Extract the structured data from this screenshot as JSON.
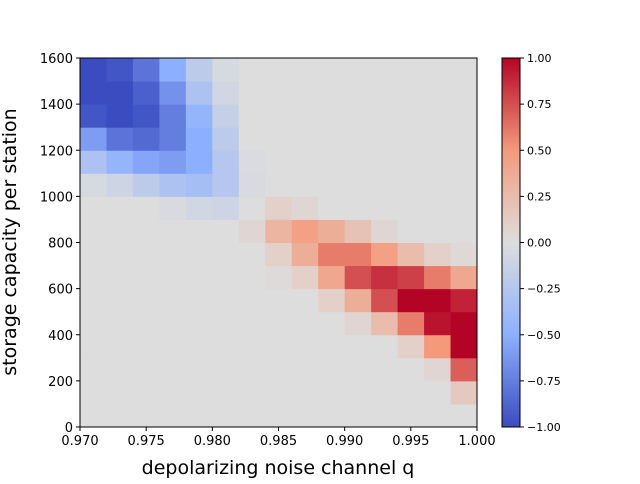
{
  "chart_data": {
    "type": "heatmap",
    "x_label": "depolarizing noise channel q",
    "y_label": "storage capacity per station",
    "colormap": "coolwarm",
    "x": [
      0.971,
      0.973,
      0.975,
      0.977,
      0.979,
      0.981,
      0.983,
      0.985,
      0.987,
      0.989,
      0.991,
      0.993,
      0.995,
      0.997,
      0.999
    ],
    "y": [
      50,
      150,
      250,
      350,
      450,
      550,
      650,
      750,
      850,
      950,
      1050,
      1150,
      1250,
      1350,
      1450,
      1550
    ],
    "z": [
      [
        0,
        0,
        0,
        0,
        0,
        0,
        0,
        0,
        0,
        0,
        0,
        0,
        0,
        0,
        0
      ],
      [
        0,
        0,
        0,
        0,
        0,
        0,
        0,
        0,
        0,
        0,
        0,
        0,
        0,
        0,
        0.15
      ],
      [
        0,
        0,
        0,
        0,
        0,
        0,
        0,
        0,
        0,
        0,
        0,
        0,
        0,
        0.05,
        0.7
      ],
      [
        0,
        0,
        0,
        0,
        0,
        0,
        0,
        0,
        0,
        0,
        0,
        0,
        0.1,
        0.5,
        1
      ],
      [
        0,
        0,
        0,
        0,
        0,
        0,
        0,
        0,
        0,
        0,
        0.05,
        0.25,
        0.6,
        0.95,
        1
      ],
      [
        0,
        0,
        0,
        0,
        0,
        0,
        0,
        0,
        0,
        0.1,
        0.35,
        0.75,
        1,
        1,
        0.9
      ],
      [
        0,
        0,
        0,
        0,
        0,
        0,
        0,
        0.02,
        0.1,
        0.4,
        0.75,
        0.85,
        0.8,
        0.6,
        0.4
      ],
      [
        0,
        0,
        0,
        0,
        0,
        0,
        0,
        0.1,
        0.35,
        0.6,
        0.6,
        0.45,
        0.25,
        0.1,
        0.03
      ],
      [
        0,
        0,
        0,
        0,
        0,
        0,
        0.05,
        0.3,
        0.45,
        0.35,
        0.2,
        0.05,
        0,
        0,
        0
      ],
      [
        0,
        0,
        0,
        -0.03,
        -0.08,
        -0.1,
        0,
        0.1,
        0.05,
        0,
        0,
        0,
        0,
        0,
        0
      ],
      [
        -0.05,
        -0.1,
        -0.2,
        -0.3,
        -0.35,
        -0.25,
        -0.03,
        0,
        0,
        0,
        0,
        0,
        0,
        0,
        0
      ],
      [
        -0.3,
        -0.45,
        -0.55,
        -0.6,
        -0.5,
        -0.25,
        -0.02,
        0,
        0,
        0,
        0,
        0,
        0,
        0,
        0
      ],
      [
        -0.6,
        -0.8,
        -0.85,
        -0.75,
        -0.5,
        -0.2,
        0,
        0,
        0,
        0,
        0,
        0,
        0,
        0,
        0
      ],
      [
        -0.95,
        -1,
        -0.95,
        -0.75,
        -0.45,
        -0.15,
        0,
        0,
        0,
        0,
        0,
        0,
        0,
        0,
        0
      ],
      [
        -1,
        -1,
        -0.9,
        -0.65,
        -0.3,
        -0.08,
        0,
        0,
        0,
        0,
        0,
        0,
        0,
        0,
        0
      ],
      [
        -1,
        -0.95,
        -0.8,
        -0.5,
        -0.2,
        -0.05,
        0,
        0,
        0,
        0,
        0,
        0,
        0,
        0,
        0
      ]
    ],
    "xlim": [
      0.97,
      1.0
    ],
    "xticks": [
      {
        "value": 0.97,
        "label": "0.970"
      },
      {
        "value": 0.975,
        "label": "0.975"
      },
      {
        "value": 0.98,
        "label": "0.980"
      },
      {
        "value": 0.985,
        "label": "0.985"
      },
      {
        "value": 0.99,
        "label": "0.990"
      },
      {
        "value": 0.995,
        "label": "0.995"
      },
      {
        "value": 1.0,
        "label": "1.000"
      }
    ],
    "ylim": [
      0,
      1600
    ],
    "yticks": [
      0,
      200,
      400,
      600,
      800,
      1000,
      1200,
      1400,
      1600
    ],
    "clim": [
      -1,
      1
    ],
    "cticks": [
      {
        "value": -1,
        "label": "−1.00"
      },
      {
        "value": -0.75,
        "label": "−0.75"
      },
      {
        "value": -0.5,
        "label": "−0.50"
      },
      {
        "value": -0.25,
        "label": "−0.25"
      },
      {
        "value": 0,
        "label": "0.00"
      },
      {
        "value": 0.25,
        "label": "0.25"
      },
      {
        "value": 0.5,
        "label": "0.50"
      },
      {
        "value": 0.75,
        "label": "0.75"
      },
      {
        "value": 1,
        "label": "1.00"
      }
    ]
  }
}
